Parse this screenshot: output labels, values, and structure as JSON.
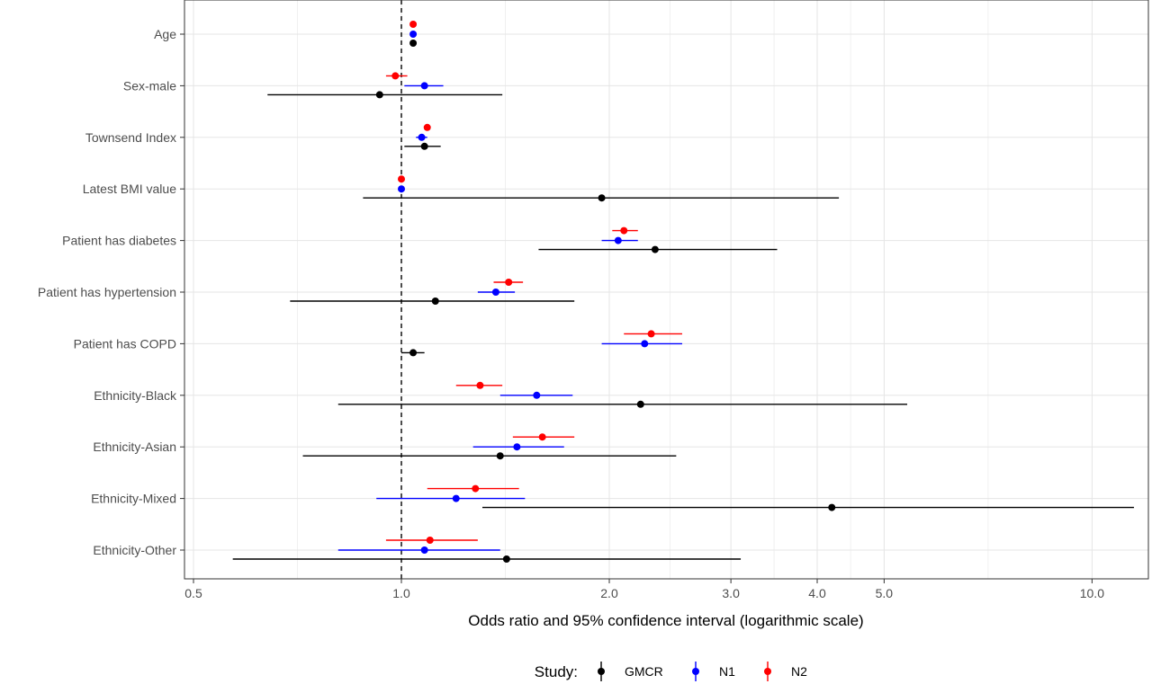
{
  "chart_data": {
    "type": "forest",
    "title": "",
    "xlabel": "Odds ratio and 95% confidence interval (logarithmic scale)",
    "ylabel": "",
    "x_scale": "log",
    "xlim": [
      0.5,
      12
    ],
    "reference_line": 1.0,
    "grid": true,
    "x_ticks": [
      {
        "value": 0.5,
        "label": "0.5"
      },
      {
        "value": 1.0,
        "label": "1.0"
      },
      {
        "value": 2.0,
        "label": "2.0"
      },
      {
        "value": 3.0,
        "label": "3.0"
      },
      {
        "value": 4.0,
        "label": "4.0"
      },
      {
        "value": 5.0,
        "label": "5.0"
      },
      {
        "value": 10.0,
        "label": "10.0"
      }
    ],
    "categories": [
      "Age",
      "Sex-male",
      "Townsend Index",
      "Latest BMI value",
      "Patient has diabetes",
      "Patient has hypertension",
      "Patient has COPD",
      "Ethnicity-Black",
      "Ethnicity-Asian",
      "Ethnicity-Mixed",
      "Ethnicity-Other"
    ],
    "legend": {
      "title": "Study:",
      "position": "bottom"
    },
    "series": [
      {
        "name": "GMCR",
        "color": "#000000",
        "points": [
          {
            "est": 1.04,
            "lo": 1.03,
            "hi": 1.05
          },
          {
            "est": 0.93,
            "lo": 0.64,
            "hi": 1.4
          },
          {
            "est": 1.08,
            "lo": 1.01,
            "hi": 1.14
          },
          {
            "est": 1.95,
            "lo": 0.88,
            "hi": 4.3
          },
          {
            "est": 2.33,
            "lo": 1.58,
            "hi": 3.5
          },
          {
            "est": 1.12,
            "lo": 0.69,
            "hi": 1.78
          },
          {
            "est": 1.04,
            "lo": 1.0,
            "hi": 1.08
          },
          {
            "est": 2.22,
            "lo": 0.81,
            "hi": 5.4
          },
          {
            "est": 1.39,
            "lo": 0.72,
            "hi": 2.5
          },
          {
            "est": 4.2,
            "lo": 1.31,
            "hi": 11.5
          },
          {
            "est": 1.42,
            "lo": 0.57,
            "hi": 3.1
          }
        ]
      },
      {
        "name": "N1",
        "color": "#0000ff",
        "points": [
          {
            "est": 1.04,
            "lo": 1.03,
            "hi": 1.05
          },
          {
            "est": 1.08,
            "lo": 1.01,
            "hi": 1.15
          },
          {
            "est": 1.07,
            "lo": 1.05,
            "hi": 1.09
          },
          {
            "est": 1.0,
            "lo": 0.99,
            "hi": 1.01
          },
          {
            "est": 2.06,
            "lo": 1.95,
            "hi": 2.2
          },
          {
            "est": 1.37,
            "lo": 1.29,
            "hi": 1.46
          },
          {
            "est": 2.25,
            "lo": 1.95,
            "hi": 2.55
          },
          {
            "est": 1.57,
            "lo": 1.39,
            "hi": 1.77
          },
          {
            "est": 1.47,
            "lo": 1.27,
            "hi": 1.72
          },
          {
            "est": 1.2,
            "lo": 0.92,
            "hi": 1.51
          },
          {
            "est": 1.08,
            "lo": 0.81,
            "hi": 1.39
          }
        ]
      },
      {
        "name": "N2",
        "color": "#ff0000",
        "points": [
          {
            "est": 1.04,
            "lo": 1.03,
            "hi": 1.05
          },
          {
            "est": 0.98,
            "lo": 0.95,
            "hi": 1.02
          },
          {
            "est": 1.09,
            "lo": 1.08,
            "hi": 1.1
          },
          {
            "est": 1.0,
            "lo": 0.99,
            "hi": 1.01
          },
          {
            "est": 2.1,
            "lo": 2.02,
            "hi": 2.2
          },
          {
            "est": 1.43,
            "lo": 1.36,
            "hi": 1.5
          },
          {
            "est": 2.3,
            "lo": 2.1,
            "hi": 2.55
          },
          {
            "est": 1.3,
            "lo": 1.2,
            "hi": 1.4
          },
          {
            "est": 1.6,
            "lo": 1.45,
            "hi": 1.78
          },
          {
            "est": 1.28,
            "lo": 1.09,
            "hi": 1.48
          },
          {
            "est": 1.1,
            "lo": 0.95,
            "hi": 1.29
          }
        ]
      }
    ]
  }
}
